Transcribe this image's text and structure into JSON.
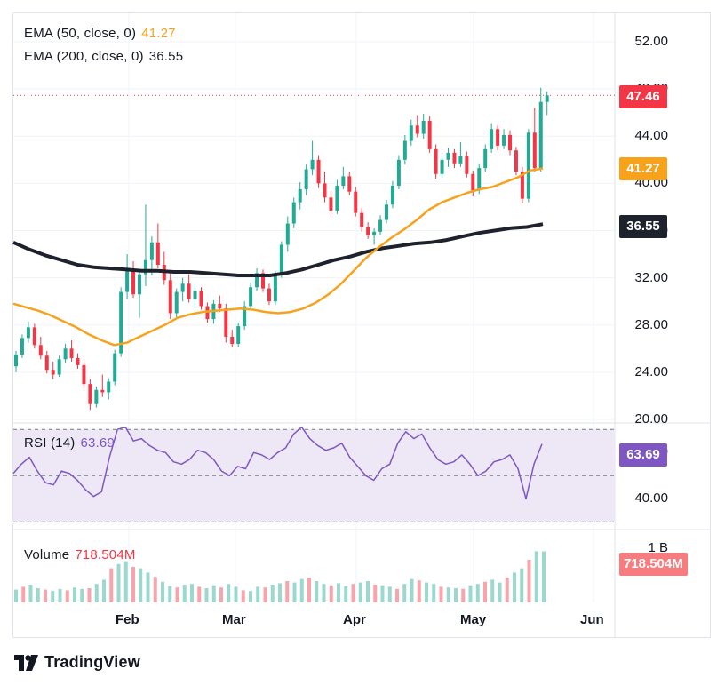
{
  "brand": {
    "name": "TradingView",
    "logo_icon": "tradingview-logo-icon"
  },
  "colors": {
    "up": "#22ab94",
    "down": "#f23645",
    "ema50": "#f7a21b",
    "ema200": "#1e222d",
    "rsi": "#7e57c2",
    "rsi_band": "#ede7f6",
    "grid": "#f0f3fa",
    "price_line": "#f23645"
  },
  "legend": {
    "ema50_label": "EMA (50, close, 0)",
    "ema50_value": "41.27",
    "ema200_label": "EMA (200, close, 0)",
    "ema200_value": "36.55",
    "rsi_label": "RSI (14)",
    "rsi_value": "63.69",
    "volume_label": "Volume",
    "volume_value": "718.504M"
  },
  "price_tags": {
    "last": "47.46",
    "ema50": "41.27",
    "ema200": "36.55",
    "rsi": "63.69",
    "volume": "718.504M"
  },
  "price_axis": [
    "52.00",
    "48.00",
    "44.00",
    "40.00",
    "36.00",
    "32.00",
    "28.00",
    "24.00",
    "20.00"
  ],
  "rsi_axis": [
    "60.00",
    "40.00"
  ],
  "volume_axis": [
    "1 B"
  ],
  "time_axis": [
    "Feb",
    "Mar",
    "Apr",
    "May",
    "Jun"
  ],
  "chart_data": {
    "type": "candlestick",
    "price_range": [
      20,
      52
    ],
    "last_price": 47.46,
    "candles": [
      [
        24.5,
        25.8,
        24.0,
        25.5
      ],
      [
        25.5,
        27.2,
        25.2,
        26.9
      ],
      [
        26.9,
        28.3,
        26.5,
        27.8
      ],
      [
        27.8,
        28.1,
        26.0,
        26.3
      ],
      [
        26.3,
        27.0,
        25.1,
        25.4
      ],
      [
        25.4,
        25.8,
        23.9,
        24.2
      ],
      [
        24.2,
        24.9,
        23.4,
        23.8
      ],
      [
        23.8,
        25.4,
        23.6,
        25.1
      ],
      [
        25.1,
        26.4,
        24.8,
        26.0
      ],
      [
        26.0,
        26.7,
        24.9,
        25.2
      ],
      [
        25.2,
        25.6,
        24.3,
        24.6
      ],
      [
        24.6,
        24.9,
        22.6,
        23.0
      ],
      [
        23.0,
        23.4,
        20.8,
        21.3
      ],
      [
        21.3,
        22.8,
        21.0,
        22.5
      ],
      [
        22.5,
        23.8,
        21.9,
        22.3
      ],
      [
        22.3,
        23.5,
        21.7,
        23.2
      ],
      [
        23.2,
        25.9,
        22.9,
        25.6
      ],
      [
        25.6,
        31.2,
        25.3,
        30.8
      ],
      [
        30.8,
        34.0,
        30.2,
        32.7
      ],
      [
        32.7,
        33.4,
        30.3,
        30.6
      ],
      [
        30.6,
        32.7,
        28.6,
        32.3
      ],
      [
        32.3,
        38.2,
        31.3,
        33.5
      ],
      [
        33.5,
        35.5,
        32.2,
        35.0
      ],
      [
        35.0,
        36.6,
        32.8,
        33.1
      ],
      [
        33.1,
        34.2,
        31.4,
        31.8
      ],
      [
        31.8,
        32.6,
        28.5,
        29.0
      ],
      [
        29.0,
        31.1,
        28.6,
        30.8
      ],
      [
        30.8,
        32.0,
        30.0,
        31.5
      ],
      [
        31.5,
        32.3,
        29.9,
        30.2
      ],
      [
        30.2,
        31.4,
        29.4,
        30.9
      ],
      [
        30.9,
        31.2,
        29.3,
        29.6
      ],
      [
        29.6,
        29.9,
        28.2,
        28.5
      ],
      [
        28.5,
        30.1,
        28.1,
        29.8
      ],
      [
        29.8,
        30.5,
        29.1,
        29.4
      ],
      [
        29.4,
        29.8,
        26.5,
        27.0
      ],
      [
        27.0,
        27.6,
        26.1,
        26.4
      ],
      [
        26.4,
        28.2,
        26.1,
        27.9
      ],
      [
        27.9,
        30.0,
        27.6,
        29.6
      ],
      [
        29.6,
        31.6,
        29.3,
        31.2
      ],
      [
        31.2,
        32.8,
        30.9,
        32.4
      ],
      [
        32.4,
        32.7,
        30.8,
        31.1
      ],
      [
        31.1,
        31.5,
        29.7,
        30.0
      ],
      [
        30.0,
        32.6,
        29.7,
        32.3
      ],
      [
        32.3,
        35.1,
        32.0,
        34.8
      ],
      [
        34.8,
        37.2,
        34.2,
        36.6
      ],
      [
        36.6,
        38.8,
        36.2,
        38.4
      ],
      [
        38.4,
        40.1,
        37.8,
        39.5
      ],
      [
        39.5,
        41.6,
        39.0,
        41.2
      ],
      [
        41.2,
        43.6,
        40.7,
        42.0
      ],
      [
        42.0,
        42.4,
        39.6,
        40.0
      ],
      [
        40.0,
        41.0,
        38.4,
        38.8
      ],
      [
        38.8,
        39.3,
        37.2,
        37.7
      ],
      [
        37.7,
        40.3,
        37.4,
        39.8
      ],
      [
        39.8,
        41.4,
        39.5,
        40.6
      ],
      [
        40.6,
        41.0,
        39.0,
        39.3
      ],
      [
        39.3,
        39.7,
        37.2,
        37.5
      ],
      [
        37.5,
        37.9,
        35.9,
        36.3
      ],
      [
        36.3,
        36.7,
        35.3,
        35.6
      ],
      [
        35.6,
        36.2,
        34.8,
        35.9
      ],
      [
        35.9,
        37.3,
        35.6,
        36.9
      ],
      [
        36.9,
        38.6,
        36.6,
        38.2
      ],
      [
        38.2,
        40.2,
        37.9,
        39.8
      ],
      [
        39.8,
        42.4,
        39.5,
        42.0
      ],
      [
        42.0,
        44.1,
        41.6,
        43.6
      ],
      [
        43.6,
        45.4,
        43.2,
        44.9
      ],
      [
        44.9,
        45.8,
        43.9,
        44.2
      ],
      [
        44.2,
        45.9,
        43.8,
        45.3
      ],
      [
        45.3,
        45.7,
        42.6,
        42.9
      ],
      [
        42.9,
        43.3,
        40.4,
        40.8
      ],
      [
        40.8,
        42.4,
        40.5,
        42.0
      ],
      [
        42.0,
        43.0,
        41.4,
        42.6
      ],
      [
        42.6,
        42.9,
        41.3,
        41.7
      ],
      [
        41.7,
        43.5,
        41.4,
        42.3
      ],
      [
        42.3,
        42.7,
        40.5,
        40.8
      ],
      [
        40.8,
        41.1,
        38.9,
        39.4
      ],
      [
        39.4,
        41.7,
        39.1,
        41.3
      ],
      [
        41.3,
        43.3,
        41.0,
        42.9
      ],
      [
        42.9,
        45.1,
        42.6,
        44.6
      ],
      [
        44.6,
        44.9,
        42.8,
        43.2
      ],
      [
        43.2,
        44.6,
        42.9,
        44.1
      ],
      [
        44.1,
        44.5,
        42.4,
        42.8
      ],
      [
        42.8,
        43.1,
        40.7,
        41.0
      ],
      [
        41.0,
        41.4,
        38.3,
        38.7
      ],
      [
        38.7,
        44.6,
        38.4,
        44.3
      ],
      [
        44.3,
        46.4,
        41.0,
        41.3
      ],
      [
        41.3,
        48.1,
        41.0,
        46.9
      ],
      [
        46.9,
        47.8,
        45.8,
        47.46
      ]
    ],
    "ema50": [
      29.8,
      29.5,
      29.2,
      28.8,
      28.3,
      27.8,
      27.2,
      26.7,
      26.3,
      26.5,
      27.0,
      27.5,
      28.0,
      28.6,
      28.9,
      29.1,
      29.2,
      29.3,
      29.4,
      29.3,
      29.1,
      29.0,
      29.1,
      29.4,
      29.9,
      30.6,
      31.5,
      32.6,
      33.7,
      34.6,
      35.4,
      36.1,
      36.9,
      37.8,
      38.4,
      38.8,
      39.2,
      39.5,
      39.7,
      40.1,
      40.5,
      41.1,
      41.27
    ],
    "ema200": [
      35.0,
      34.4,
      33.9,
      33.5,
      33.1,
      32.9,
      32.8,
      32.7,
      32.6,
      32.6,
      32.5,
      32.5,
      32.4,
      32.3,
      32.2,
      32.2,
      32.2,
      32.4,
      32.7,
      33.1,
      33.5,
      33.8,
      34.2,
      34.5,
      34.7,
      34.9,
      35.0,
      35.2,
      35.5,
      35.8,
      36.0,
      36.2,
      36.3,
      36.55
    ],
    "rsi_range": [
      29,
      72
    ],
    "rsi_bands": [
      30,
      50,
      70
    ],
    "rsi": [
      51,
      55,
      58,
      52,
      47,
      46,
      52,
      51,
      48,
      44,
      41,
      43,
      58,
      70,
      71,
      65,
      66,
      63,
      61,
      60,
      56,
      55,
      57,
      61,
      60,
      57,
      52,
      50,
      54,
      53,
      60,
      59,
      57,
      60,
      62,
      68,
      71,
      66,
      63,
      61,
      62,
      64,
      58,
      54,
      50,
      48,
      53,
      55,
      64,
      69,
      66,
      68,
      62,
      57,
      55,
      56,
      59,
      55,
      50,
      52,
      56,
      57,
      59,
      53,
      40,
      55,
      63.69
    ],
    "volume_range": [
      0,
      1000
    ],
    "volume": [
      180,
      220,
      250,
      200,
      180,
      160,
      190,
      170,
      210,
      190,
      200,
      260,
      320,
      480,
      540,
      580,
      500,
      480,
      420,
      360,
      290,
      230,
      210,
      250,
      260,
      220,
      200,
      240,
      210,
      260,
      220,
      170,
      160,
      220,
      210,
      250,
      270,
      300,
      280,
      330,
      350,
      300,
      260,
      240,
      270,
      230,
      260,
      280,
      300,
      250,
      240,
      220,
      190,
      260,
      330,
      310,
      280,
      260,
      220,
      210,
      200,
      190,
      240,
      260,
      290,
      320,
      280,
      350,
      420,
      480,
      600,
      720,
      718.504
    ]
  }
}
